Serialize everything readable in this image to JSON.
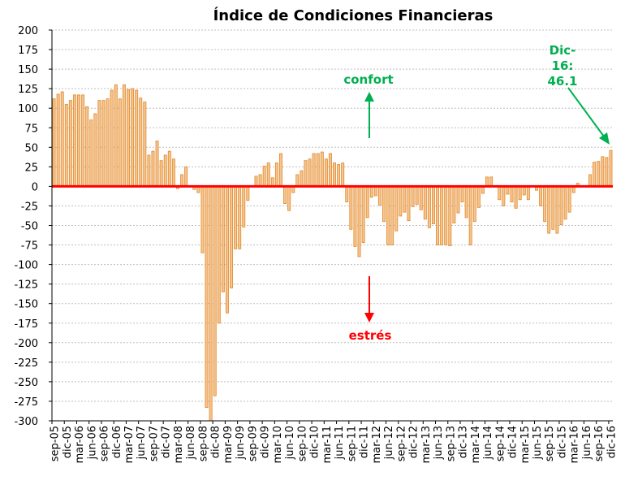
{
  "chart_data": {
    "type": "bar",
    "title": "Índice de Condiciones Financieras",
    "xlabel": "",
    "ylabel": "",
    "ylim": [
      -300,
      200
    ],
    "ytick_step": 25,
    "grid": true,
    "colors": {
      "bar_fill": "#f6c48f",
      "bar_stroke": "#e08a2c",
      "zero_line": "#ff0000",
      "confort": "#00b050",
      "estres": "#ff0000",
      "grid": "#bfbfbf"
    },
    "categories": [
      "sep-05",
      "oct-05",
      "nov-05",
      "dic-05",
      "ene-06",
      "feb-06",
      "mar-06",
      "abr-06",
      "may-06",
      "jun-06",
      "jul-06",
      "ago-06",
      "sep-06",
      "oct-06",
      "nov-06",
      "dic-06",
      "ene-07",
      "feb-07",
      "mar-07",
      "abr-07",
      "may-07",
      "jun-07",
      "jul-07",
      "ago-07",
      "sep-07",
      "oct-07",
      "nov-07",
      "dic-07",
      "ene-08",
      "feb-08",
      "mar-08",
      "abr-08",
      "may-08",
      "jun-08",
      "jul-08",
      "ago-08",
      "sep-08",
      "oct-08",
      "nov-08",
      "dic-08",
      "ene-09",
      "feb-09",
      "mar-09",
      "abr-09",
      "may-09",
      "jun-09",
      "jul-09",
      "ago-09",
      "sep-09",
      "oct-09",
      "nov-09",
      "dic-09",
      "ene-10",
      "feb-10",
      "mar-10",
      "abr-10",
      "may-10",
      "jun-10",
      "jul-10",
      "ago-10",
      "sep-10",
      "oct-10",
      "nov-10",
      "dic-10",
      "ene-11",
      "feb-11",
      "mar-11",
      "abr-11",
      "may-11",
      "jun-11",
      "jul-11",
      "ago-11",
      "sep-11",
      "oct-11",
      "nov-11",
      "dic-11",
      "ene-12",
      "feb-12",
      "mar-12",
      "abr-12",
      "may-12",
      "jun-12",
      "jul-12",
      "ago-12",
      "sep-12",
      "oct-12",
      "nov-12",
      "dic-12",
      "ene-13",
      "feb-13",
      "mar-13",
      "abr-13",
      "may-13",
      "jun-13",
      "jul-13",
      "ago-13",
      "sep-13",
      "oct-13",
      "nov-13",
      "dic-13",
      "ene-14",
      "feb-14",
      "mar-14",
      "abr-14",
      "may-14",
      "jun-14",
      "jul-14",
      "ago-14",
      "sep-14",
      "oct-14",
      "nov-14",
      "dic-14",
      "ene-15",
      "feb-15",
      "mar-15",
      "abr-15",
      "may-15",
      "jun-15",
      "jul-15",
      "ago-15",
      "sep-15",
      "oct-15",
      "nov-15",
      "dic-15",
      "ene-16",
      "feb-16",
      "mar-16",
      "abr-16",
      "may-16",
      "jun-16",
      "jul-16",
      "ago-16",
      "sep-16",
      "oct-16",
      "nov-16",
      "dic-16"
    ],
    "tick_labels": [
      "sep-05",
      "dic-05",
      "mar-06",
      "jun-06",
      "sep-06",
      "dic-06",
      "mar-07",
      "jun-07",
      "sep-07",
      "dic-07",
      "mar-08",
      "jun-08",
      "sep-08",
      "dic-08",
      "mar-09",
      "jun-09",
      "sep-09",
      "dic-09",
      "mar-10",
      "jun-10",
      "sep-10",
      "dic-10",
      "mar-11",
      "jun-11",
      "sep-11",
      "dic-11",
      "mar-12",
      "jun-12",
      "sep-12",
      "dic-12",
      "mar-13",
      "jun-13",
      "sep-13",
      "dic-13",
      "mar-14",
      "jun-14",
      "sep-14",
      "dic-14",
      "mar-15",
      "jun-15",
      "sep-15",
      "dic-15",
      "mar-16",
      "jun-16",
      "sep-16",
      "dic-16"
    ],
    "values": [
      112,
      118,
      121,
      105,
      110,
      117,
      117,
      117,
      102,
      85,
      93,
      110,
      110,
      112,
      123,
      130,
      112,
      130,
      124,
      125,
      123,
      113,
      108,
      40,
      45,
      58,
      33,
      40,
      45,
      35,
      -3,
      15,
      25,
      0,
      -4,
      -8,
      -85,
      -283,
      -300,
      -268,
      -175,
      -135,
      -162,
      -130,
      -80,
      -80,
      -52,
      -18,
      0,
      13,
      15,
      26,
      30,
      11,
      30,
      42,
      -22,
      -31,
      -8,
      15,
      20,
      33,
      35,
      42,
      42,
      44,
      35,
      42,
      30,
      28,
      30,
      -20,
      -55,
      -77,
      -90,
      -72,
      -40,
      -14,
      -12,
      -24,
      -45,
      -75,
      -75,
      -57,
      -38,
      -33,
      -44,
      -26,
      -23,
      -30,
      -42,
      -53,
      -48,
      -75,
      -75,
      -75,
      -76,
      -47,
      -34,
      -20,
      -40,
      -75,
      -45,
      -27,
      -9,
      12,
      12,
      0,
      -17,
      -25,
      -10,
      -20,
      -28,
      -17,
      -11,
      -17,
      0,
      -5,
      -25,
      -45,
      -60,
      -55,
      -60,
      -49,
      -42,
      -33,
      -8,
      4,
      0,
      0,
      15,
      31,
      32,
      38,
      37,
      46.1
    ],
    "annotations": {
      "confort": "confort",
      "estres": "estrés",
      "last_label_line1": "Dic-",
      "last_label_line2": "16:",
      "last_label_line3": "46.1"
    }
  }
}
